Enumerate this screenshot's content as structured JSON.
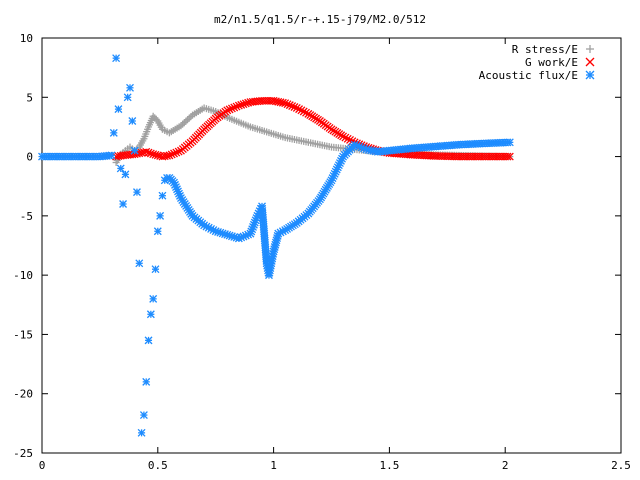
{
  "chart_data": {
    "type": "scatter",
    "title": "m2/n1.5/q1.5/r-+.15-j79/M2.0/512",
    "xlabel": "",
    "ylabel": "",
    "xlim": [
      0,
      2.5
    ],
    "ylim": [
      -25,
      10
    ],
    "x_ticks": [
      "0",
      "0.5",
      "1",
      "1.5",
      "2",
      "2.5"
    ],
    "y_ticks": [
      "10",
      "5",
      "0",
      "-5",
      "-10",
      "-15",
      "-20",
      "-25"
    ],
    "grid": false,
    "legend_position": "top-right",
    "series": [
      {
        "name": "R stress/E",
        "marker": "plus",
        "color": "#a0a0a0",
        "x": [
          0.32,
          0.34,
          0.36,
          0.38,
          0.4,
          0.42,
          0.44,
          0.46,
          0.48,
          0.5,
          0.52,
          0.55,
          0.6,
          0.65,
          0.7,
          0.75,
          0.8,
          0.85,
          0.9,
          0.95,
          1.0,
          1.05,
          1.1,
          1.15,
          1.2,
          1.25,
          1.3,
          1.35,
          1.4,
          1.45,
          1.5,
          1.6,
          1.7,
          1.8,
          1.9,
          2.02
        ],
        "y": [
          -0.5,
          0.2,
          0.5,
          0.8,
          0.5,
          0.8,
          1.5,
          2.5,
          3.4,
          3.0,
          2.3,
          2.0,
          2.6,
          3.5,
          4.1,
          3.8,
          3.3,
          2.9,
          2.5,
          2.2,
          1.9,
          1.6,
          1.4,
          1.2,
          1.0,
          0.8,
          0.7,
          0.6,
          0.5,
          0.4,
          0.35,
          0.25,
          0.15,
          0.1,
          0.05,
          0.0
        ]
      },
      {
        "name": "G work/E",
        "marker": "cross",
        "color": "#ff0000",
        "x": [
          0.32,
          0.35,
          0.4,
          0.45,
          0.48,
          0.52,
          0.55,
          0.6,
          0.65,
          0.7,
          0.75,
          0.8,
          0.85,
          0.9,
          0.95,
          1.0,
          1.05,
          1.1,
          1.15,
          1.2,
          1.25,
          1.3,
          1.35,
          1.4,
          1.45,
          1.5,
          1.6,
          1.7,
          1.8,
          1.9,
          2.02
        ],
        "y": [
          0.0,
          0.1,
          0.2,
          0.4,
          0.2,
          0.0,
          0.1,
          0.5,
          1.3,
          2.3,
          3.2,
          3.9,
          4.3,
          4.6,
          4.7,
          4.7,
          4.5,
          4.1,
          3.6,
          3.0,
          2.3,
          1.7,
          1.2,
          0.8,
          0.5,
          0.3,
          0.15,
          0.05,
          0.0,
          0.0,
          0.0
        ]
      },
      {
        "name": "Acoustic flux/E",
        "marker": "star",
        "color": "#1e8cff",
        "x": [
          0.0,
          0.05,
          0.1,
          0.15,
          0.2,
          0.25,
          0.3,
          0.31,
          0.32,
          0.33,
          0.34,
          0.35,
          0.36,
          0.37,
          0.38,
          0.39,
          0.4,
          0.41,
          0.42,
          0.43,
          0.44,
          0.45,
          0.46,
          0.47,
          0.48,
          0.49,
          0.5,
          0.51,
          0.52,
          0.53,
          0.54,
          0.55,
          0.57,
          0.6,
          0.65,
          0.7,
          0.75,
          0.8,
          0.85,
          0.9,
          0.93,
          0.95,
          0.97,
          0.98,
          1.0,
          1.02,
          1.05,
          1.1,
          1.15,
          1.2,
          1.25,
          1.3,
          1.35,
          1.4,
          1.45,
          1.5,
          1.6,
          1.7,
          1.8,
          1.9,
          2.02
        ],
        "y": [
          0.0,
          0.0,
          0.0,
          0.0,
          0.0,
          0.0,
          0.1,
          2.0,
          8.3,
          4.0,
          -1.0,
          -4.0,
          -1.5,
          5.0,
          5.8,
          3.0,
          0.5,
          -3.0,
          -9.0,
          -23.3,
          -21.8,
          -19.0,
          -15.5,
          -13.3,
          -12.0,
          -9.5,
          -6.3,
          -5.0,
          -3.3,
          -2.0,
          -1.8,
          -1.8,
          -2.2,
          -3.5,
          -5.0,
          -5.8,
          -6.3,
          -6.6,
          -6.9,
          -6.5,
          -5.0,
          -4.2,
          -9.0,
          -10.0,
          -8.0,
          -6.5,
          -6.2,
          -5.6,
          -4.8,
          -3.6,
          -2.0,
          0.0,
          1.0,
          0.6,
          0.4,
          0.5,
          0.7,
          0.85,
          1.0,
          1.1,
          1.2
        ]
      }
    ]
  }
}
